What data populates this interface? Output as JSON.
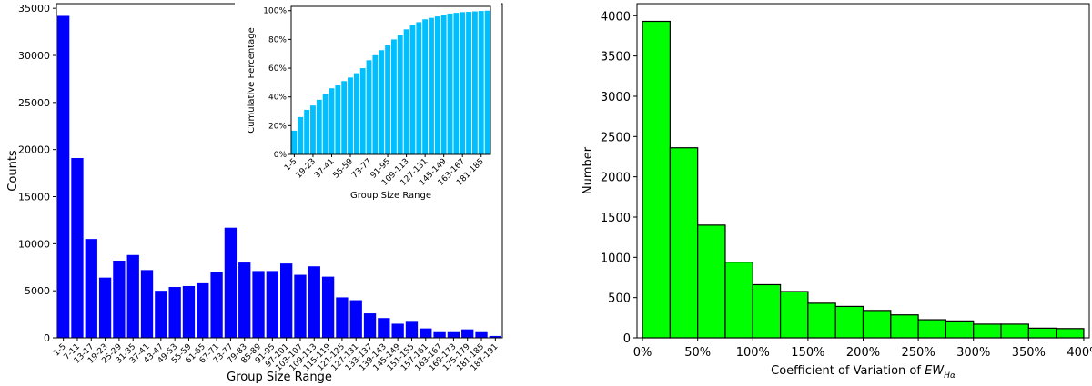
{
  "chart_data": [
    {
      "type": "bar",
      "title": "",
      "xlabel": "Group Size Range",
      "ylabel": "Counts",
      "ylim": [
        0,
        35500
      ],
      "yticks": [
        0,
        5000,
        10000,
        15000,
        20000,
        25000,
        30000,
        35000
      ],
      "color": "#0000ff",
      "categories": [
        "1-5",
        "7-11",
        "13-17",
        "19-23",
        "25-29",
        "31-35",
        "37-41",
        "43-47",
        "49-53",
        "55-59",
        "61-65",
        "67-71",
        "73-77",
        "79-83",
        "85-89",
        "91-95",
        "97-101",
        "103-107",
        "109-113",
        "115-119",
        "121-125",
        "127-131",
        "133-137",
        "139-143",
        "145-149",
        "151-155",
        "157-161",
        "163-167",
        "169-173",
        "175-179",
        "181-185",
        "187-191"
      ],
      "values": [
        34200,
        19100,
        10500,
        6400,
        8200,
        8800,
        7200,
        5000,
        5400,
        5500,
        5800,
        7000,
        11700,
        8000,
        7100,
        7100,
        7900,
        6700,
        7600,
        6500,
        4300,
        4000,
        2600,
        2100,
        1500,
        1800,
        1000,
        700,
        700,
        900,
        700,
        200
      ]
    },
    {
      "type": "bar",
      "title": "",
      "xlabel": "Group Size Range",
      "ylabel": "Cumulative Percentage",
      "ylim": [
        0,
        103
      ],
      "yticks": [
        "0%",
        "20%",
        "40%",
        "60%",
        "80%",
        "100%"
      ],
      "color": "#00bfff",
      "xticklabels": [
        "1-5",
        "19-23",
        "37-41",
        "55-59",
        "73-77",
        "91-95",
        "109-113",
        "127-131",
        "145-149",
        "163-167",
        "181-185"
      ],
      "values": [
        16.5,
        26,
        31,
        34,
        38,
        42,
        46,
        48,
        51,
        53.5,
        56.5,
        60,
        65.5,
        69,
        72.5,
        76,
        80,
        83,
        87,
        90,
        92,
        94,
        95,
        96,
        97,
        98,
        98.5,
        99,
        99.2,
        99.5,
        99.8,
        100
      ]
    },
    {
      "type": "bar",
      "title": "",
      "xlabel": "Coefficient of Variation of ",
      "xlabel_math": "EW",
      "xlabel_sub": "Hα",
      "ylabel": "Number",
      "ylim": [
        0,
        4150
      ],
      "yticks": [
        0,
        500,
        1000,
        1500,
        2000,
        2500,
        3000,
        3500,
        4000
      ],
      "xticks": [
        "0%",
        "50%",
        "100%",
        "150%",
        "200%",
        "250%",
        "300%",
        "350%",
        "400%"
      ],
      "xlim": [
        -5,
        405
      ],
      "bin_width": 25,
      "color": "#00ff00",
      "values": [
        3930,
        2360,
        1400,
        940,
        660,
        575,
        430,
        390,
        340,
        285,
        225,
        210,
        170,
        170,
        120,
        115
      ]
    }
  ]
}
